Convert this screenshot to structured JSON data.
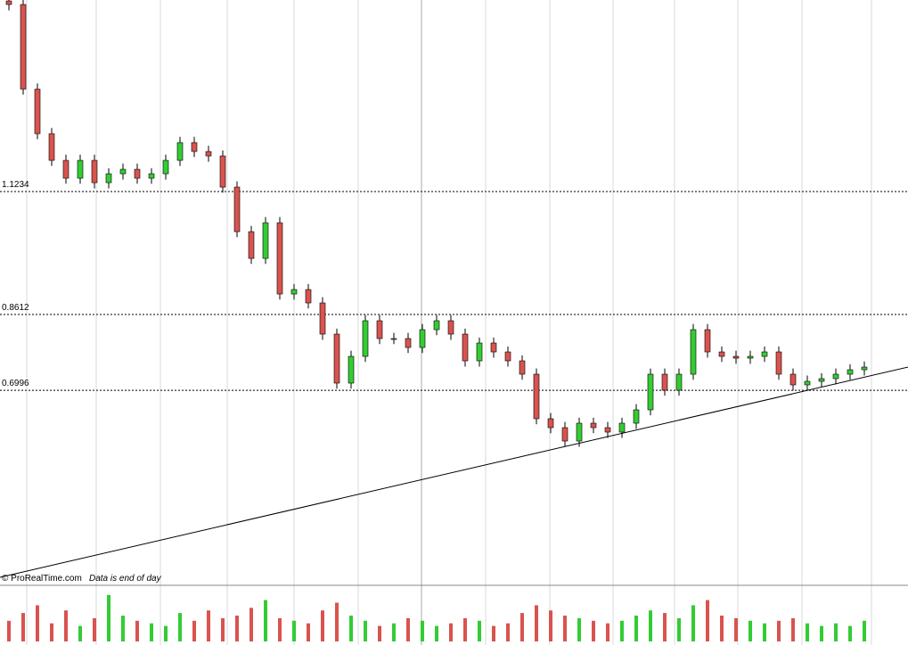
{
  "chart_data": {
    "type": "candlestick",
    "open": [
      1.53,
      1.5224,
      1.3419,
      1.2469,
      1.1899,
      1.1519,
      1.1899,
      1.1424,
      1.1614,
      1.1709,
      1.1519,
      1.1614,
      1.1899,
      1.2279,
      1.2089,
      1.1994,
      1.1329,
      1.0379,
      0.9809,
      1.0569,
      0.9049,
      0.9144,
      0.8859,
      0.8194,
      0.7149,
      0.7719,
      0.8479,
      0.8099,
      0.8099,
      0.7909,
      0.8289,
      0.8479,
      0.8194,
      0.7624,
      0.8004,
      0.7814,
      0.7624,
      0.7339,
      0.6389,
      0.6199,
      0.5914,
      0.6294,
      0.6199,
      0.6104,
      0.6294,
      0.6579,
      0.7339,
      0.6997,
      0.7339,
      0.8289,
      0.7814,
      0.7719,
      0.7681,
      0.7719,
      0.7814,
      0.7339,
      0.7111,
      0.7187,
      0.7244,
      0.7339,
      0.7434
    ],
    "high": [
      1.542,
      1.534,
      1.354,
      1.259,
      1.202,
      1.202,
      1.202,
      1.173,
      1.183,
      1.183,
      1.173,
      1.202,
      1.24,
      1.24,
      1.221,
      1.211,
      1.145,
      1.05,
      1.069,
      1.069,
      0.926,
      0.926,
      0.898,
      0.831,
      0.784,
      0.86,
      0.86,
      0.822,
      0.822,
      0.841,
      0.86,
      0.86,
      0.831,
      0.812,
      0.812,
      0.793,
      0.774,
      0.746,
      0.651,
      0.632,
      0.641,
      0.641,
      0.632,
      0.641,
      0.67,
      0.746,
      0.746,
      0.746,
      0.841,
      0.841,
      0.793,
      0.784,
      0.784,
      0.793,
      0.793,
      0.746,
      0.731,
      0.736,
      0.746,
      0.755,
      0.761
    ],
    "low": [
      1.51,
      1.33,
      1.235,
      1.178,
      1.14,
      1.14,
      1.13,
      1.13,
      1.149,
      1.14,
      1.14,
      1.149,
      1.178,
      1.197,
      1.187,
      1.121,
      1.026,
      0.969,
      0.969,
      0.893,
      0.893,
      0.874,
      0.807,
      0.703,
      0.703,
      0.76,
      0.798,
      0.798,
      0.779,
      0.779,
      0.817,
      0.807,
      0.75,
      0.75,
      0.769,
      0.75,
      0.722,
      0.627,
      0.608,
      0.579,
      0.579,
      0.608,
      0.598,
      0.598,
      0.617,
      0.646,
      0.688,
      0.688,
      0.722,
      0.769,
      0.76,
      0.756,
      0.756,
      0.76,
      0.722,
      0.699,
      0.699,
      0.707,
      0.712,
      0.722,
      0.731
    ],
    "close": [
      1.5224,
      1.3419,
      1.2469,
      1.1899,
      1.1519,
      1.1899,
      1.1424,
      1.1614,
      1.1709,
      1.1519,
      1.1614,
      1.1899,
      1.2279,
      1.2089,
      1.1994,
      1.1329,
      1.0379,
      0.9809,
      1.0569,
      0.9049,
      0.9144,
      0.8859,
      0.8194,
      0.7149,
      0.7719,
      0.8479,
      0.8099,
      0.8099,
      0.7909,
      0.8289,
      0.8479,
      0.8194,
      0.7624,
      0.8004,
      0.7814,
      0.7624,
      0.7339,
      0.6389,
      0.6199,
      0.5914,
      0.6294,
      0.6199,
      0.6104,
      0.6294,
      0.6579,
      0.7339,
      0.6997,
      0.7339,
      0.8289,
      0.7814,
      0.7719,
      0.7681,
      0.7719,
      0.7814,
      0.7339,
      0.7111,
      0.7187,
      0.7244,
      0.7339,
      0.7434,
      0.7491
    ],
    "volume": [
      40,
      55,
      70,
      35,
      60,
      30,
      45,
      90,
      50,
      40,
      35,
      30,
      55,
      40,
      60,
      45,
      50,
      65,
      80,
      45,
      40,
      35,
      60,
      75,
      50,
      40,
      30,
      35,
      45,
      40,
      30,
      35,
      45,
      40,
      30,
      35,
      55,
      70,
      60,
      50,
      45,
      40,
      35,
      40,
      50,
      60,
      55,
      45,
      70,
      80,
      50,
      45,
      40,
      35,
      40,
      45,
      35,
      30,
      35,
      30,
      40
    ],
    "up_color": "#33cc33",
    "down_color": "#d9534f",
    "wick_color": "#000000",
    "ylim": [
      0.2874,
      1.532
    ],
    "yticks": [
      1.1234,
      0.8612,
      0.6996
    ],
    "volume_lim": [
      0,
      100
    ],
    "trendline": [
      0.3007,
      0.749
    ],
    "footer": {
      "source": "© ProRealTime.com",
      "note": "Data is end of day"
    }
  }
}
